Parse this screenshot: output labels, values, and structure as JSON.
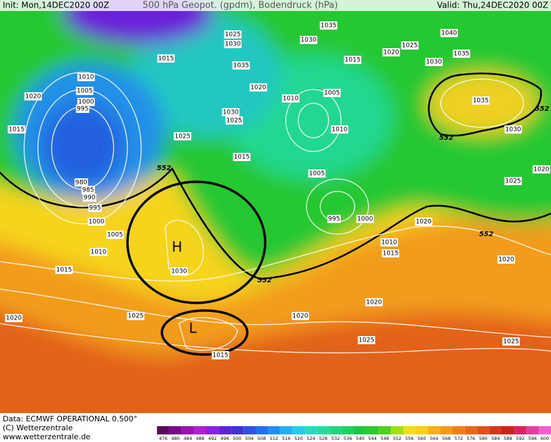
{
  "header": {
    "init": "Init: Mon,14DEC2020 00Z",
    "title": "500 hPa Geopot. (gpdm), Bodendruck (hPa)",
    "valid": "Valid: Thu,24DEC2020 00Z"
  },
  "pressure_labels": [
    "1025",
    "1030",
    "1035",
    "1040",
    "1015",
    "1030",
    "1025",
    "1035",
    "1020",
    "1030",
    "1015",
    "1010",
    "1035",
    "1005",
    "1020",
    "1000",
    "995",
    "1020",
    "1005",
    "1010",
    "1035",
    "1030",
    "1025",
    "1010",
    "1030",
    "1015",
    "1025",
    "1015",
    "1005",
    "1025",
    "1020",
    "980",
    "985",
    "990",
    "995",
    "1000",
    "995",
    "1000",
    "1005",
    "1020",
    "1010",
    "1010",
    "1015",
    "1030",
    "1015",
    "1020",
    "1020",
    "1025",
    "1020",
    "1020",
    "1025",
    "1025",
    "1015"
  ],
  "geopotential_labels": [
    "552",
    "552",
    "552",
    "552",
    "552"
  ],
  "centers": {
    "high": "H",
    "low": "L"
  },
  "footer": {
    "source": "Data: ECMWF OPERATIONAL 0.500°",
    "copyright": "(C) Wetterzentrale",
    "url": "www.wetterzentrale.de"
  },
  "scale": {
    "labels": [
      "476",
      "480",
      "484",
      "488",
      "492",
      "496",
      "500",
      "504",
      "508",
      "512",
      "516",
      "520",
      "524",
      "528",
      "532",
      "536",
      "540",
      "544",
      "548",
      "552",
      "556",
      "560",
      "564",
      "568",
      "572",
      "576",
      "580",
      "584",
      "588",
      "592",
      "596",
      "600"
    ],
    "colors": [
      "#5a0a5a",
      "#7a0a8a",
      "#9a10b0",
      "#b020d0",
      "#8a20e0",
      "#6020e0",
      "#4030e0",
      "#3050e8",
      "#2070f0",
      "#2090f0",
      "#20b0f0",
      "#20d0e8",
      "#20e0c0",
      "#20e0a0",
      "#20d880",
      "#20d060",
      "#20c840",
      "#30c830",
      "#50d020",
      "#a0e010",
      "#f0e010",
      "#f8d010",
      "#f8b010",
      "#f89818",
      "#f08018",
      "#e86818",
      "#e05018",
      "#d83818",
      "#d02018",
      "#e02060",
      "#e040a0",
      "#f060d0"
    ]
  }
}
